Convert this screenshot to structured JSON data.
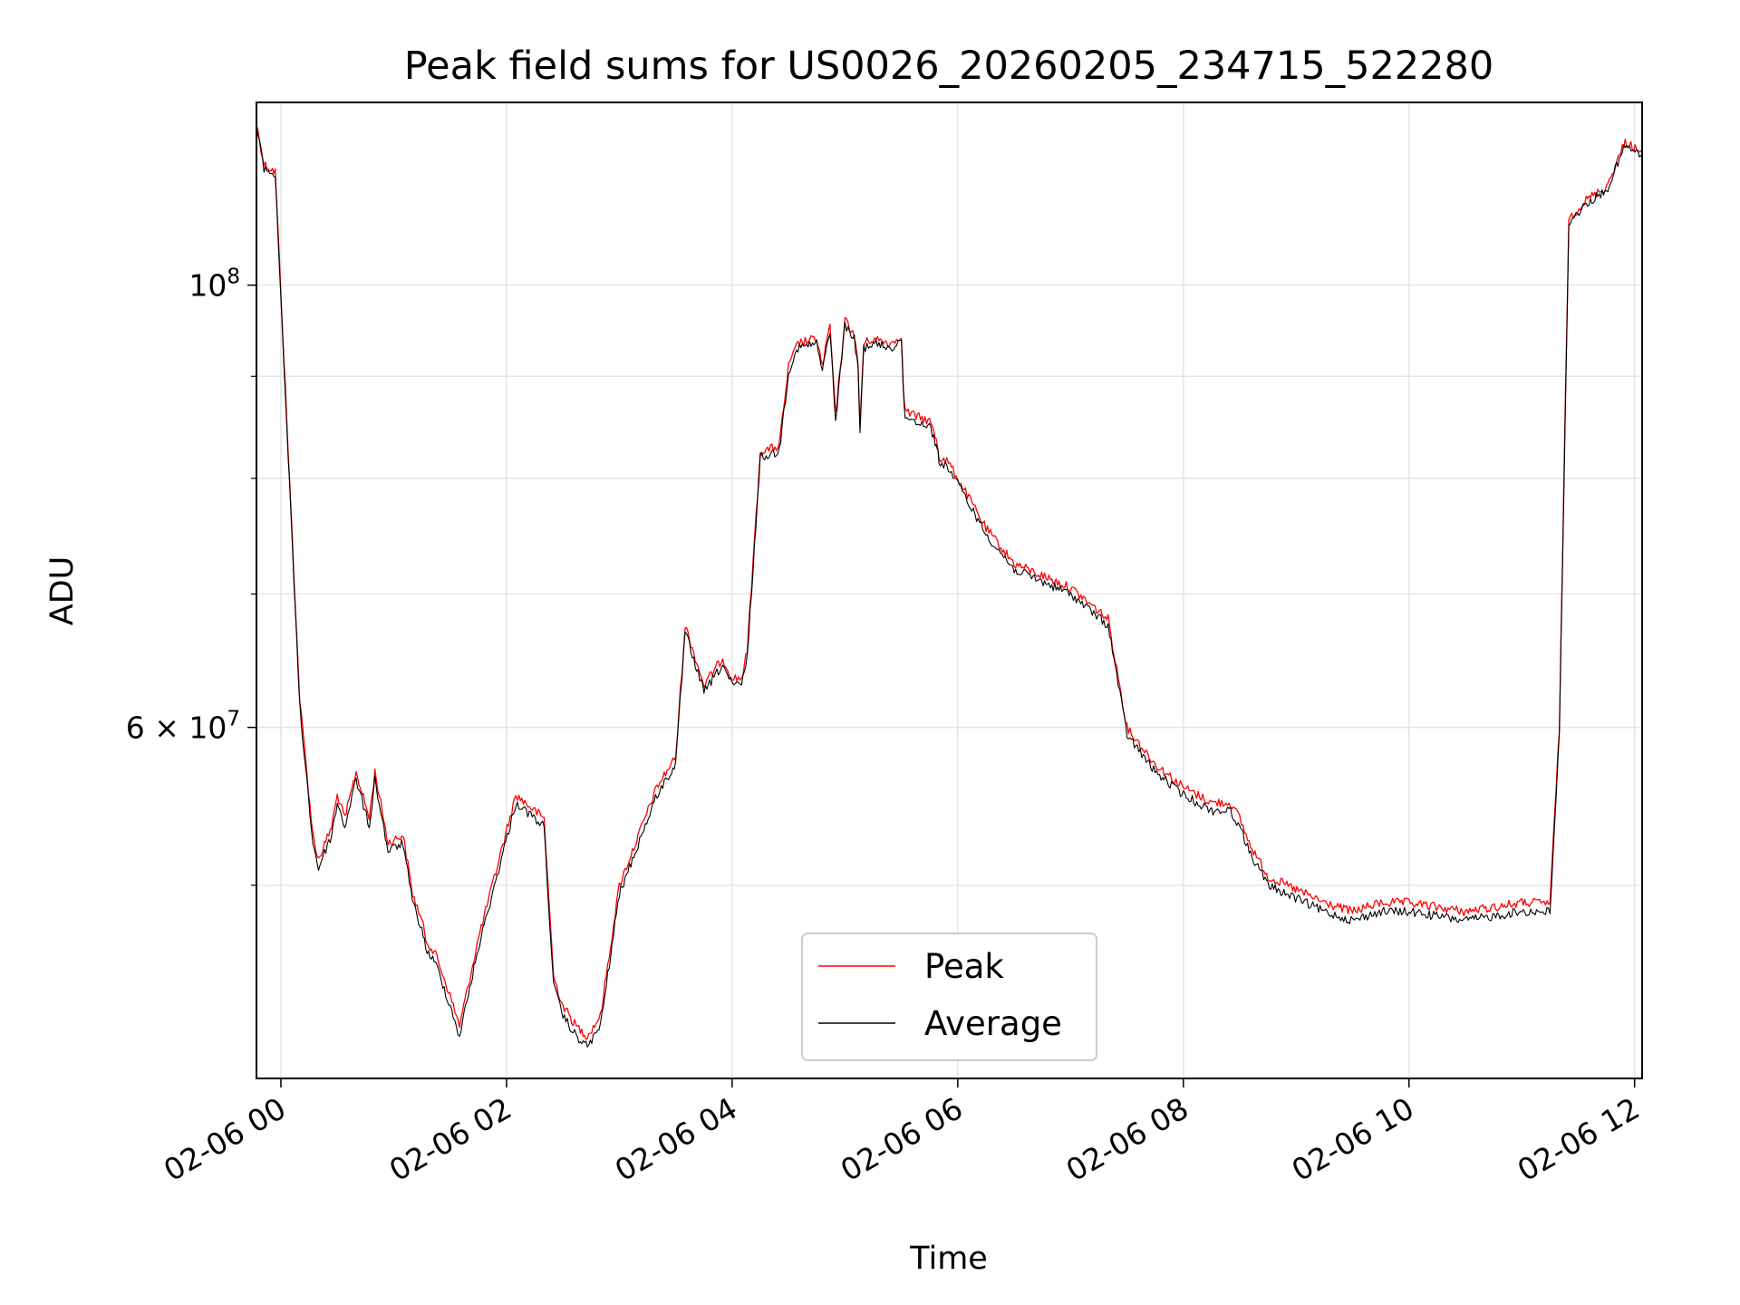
{
  "chart_data": {
    "type": "line",
    "title": "Peak field sums for US0026_20260205_234715_522280",
    "xlabel": "Time",
    "ylabel": "ADU",
    "yscale": "log",
    "xlim": [
      "2026-02-05 23:47",
      "2026-02-06 12:04"
    ],
    "ylim": [
      40000000,
      123500000
    ],
    "grid": true,
    "legend_position": "lower-center",
    "x_ticks": [
      "02-06 00",
      "02-06 02",
      "02-06 04",
      "02-06 06",
      "02-06 08",
      "02-06 10",
      "02-06 12"
    ],
    "y_ticks_major": [
      {
        "value": 100000000,
        "label_base": "10",
        "label_exp": "8"
      },
      {
        "value": 60000000,
        "label_base": "6 × 10",
        "label_exp": "7"
      }
    ],
    "y_ticks_minor": [
      50000000,
      70000000,
      80000000,
      90000000
    ],
    "x": [
      "2026-02-05 23:47",
      "2026-02-05 23:51",
      "2026-02-05 23:57",
      "2026-02-06 00:10",
      "2026-02-06 00:17",
      "2026-02-06 00:20",
      "2026-02-06 00:27",
      "2026-02-06 00:30",
      "2026-02-06 00:34",
      "2026-02-06 00:40",
      "2026-02-06 00:47",
      "2026-02-06 00:50",
      "2026-02-06 00:57",
      "2026-02-06 01:05",
      "2026-02-06 01:10",
      "2026-02-06 01:15",
      "2026-02-06 01:17",
      "2026-02-06 01:23",
      "2026-02-06 01:30",
      "2026-02-06 01:35",
      "2026-02-06 01:45",
      "2026-02-06 02:05",
      "2026-02-06 02:20",
      "2026-02-06 02:25",
      "2026-02-06 02:30",
      "2026-02-06 02:37",
      "2026-02-06 02:43",
      "2026-02-06 02:50",
      "2026-02-06 03:00",
      "2026-02-06 03:20",
      "2026-02-06 03:30",
      "2026-02-06 03:35",
      "2026-02-06 03:45",
      "2026-02-06 03:55",
      "2026-02-06 04:00",
      "2026-02-06 04:05",
      "2026-02-06 04:08",
      "2026-02-06 04:15",
      "2026-02-06 04:25",
      "2026-02-06 04:30",
      "2026-02-06 04:35",
      "2026-02-06 04:45",
      "2026-02-06 04:48",
      "2026-02-06 04:52",
      "2026-02-06 04:55",
      "2026-02-06 05:00",
      "2026-02-06 05:05",
      "2026-02-06 05:07",
      "2026-02-06 05:08",
      "2026-02-06 05:10",
      "2026-02-06 05:15",
      "2026-02-06 05:25",
      "2026-02-06 05:30",
      "2026-02-06 05:31",
      "2026-02-06 05:32",
      "2026-02-06 05:37",
      "2026-02-06 05:45",
      "2026-02-06 05:48",
      "2026-02-06 05:49",
      "2026-02-06 05:50",
      "2026-02-06 05:55",
      "2026-02-06 06:00",
      "2026-02-06 06:05",
      "2026-02-06 06:10",
      "2026-02-06 06:15",
      "2026-02-06 06:30",
      "2026-02-06 07:00",
      "2026-02-06 07:20",
      "2026-02-06 07:30",
      "2026-02-06 07:45",
      "2026-02-06 08:00",
      "2026-02-06 08:15",
      "2026-02-06 08:25",
      "2026-02-06 08:30",
      "2026-02-06 08:35",
      "2026-02-06 08:45",
      "2026-02-06 09:15",
      "2026-02-06 09:30",
      "2026-02-06 09:45",
      "2026-02-06 10:00",
      "2026-02-06 10:30",
      "2026-02-06 11:00",
      "2026-02-06 11:15",
      "2026-02-06 11:20",
      "2026-02-06 11:25",
      "2026-02-06 11:35",
      "2026-02-06 11:45",
      "2026-02-06 11:55",
      "2026-02-06 11:58",
      "2026-02-06 12:04"
    ],
    "series": [
      {
        "name": "Peak",
        "color": "#ff0000",
        "values": [
          120500000,
          115000000,
          114000000,
          62000000,
          53000000,
          51500000,
          53500000,
          55500000,
          54000000,
          57000000,
          54000000,
          57000000,
          52500000,
          53000000,
          49500000,
          48000000,
          47000000,
          46000000,
          44000000,
          42500000,
          47000000,
          55500000,
          54000000,
          45000000,
          43500000,
          42500000,
          42000000,
          43000000,
          50000000,
          56000000,
          58000000,
          67500000,
          63000000,
          65000000,
          63500000,
          63500000,
          65500000,
          82500000,
          83000000,
          91000000,
          93500000,
          94000000,
          91000000,
          95500000,
          86000000,
          96000000,
          94500000,
          91000000,
          85000000,
          93500000,
          94000000,
          93500000,
          94500000,
          89000000,
          86500000,
          86000000,
          85500000,
          84000000,
          83500000,
          82000000,
          81500000,
          80000000,
          78500000,
          77000000,
          75500000,
          72500000,
          70500000,
          68000000,
          60000000,
          57500000,
          56000000,
          55000000,
          55000000,
          54000000,
          52500000,
          50500000,
          49000000,
          48500000,
          49000000,
          49000000,
          48500000,
          49000000,
          49000000,
          60000000,
          108000000,
          110500000,
          112000000,
          118000000,
          117500000,
          116500000
        ]
      },
      {
        "name": "Average",
        "color": "#000000",
        "values": [
          120000000,
          114500000,
          113500000,
          61500000,
          52500000,
          51000000,
          53000000,
          55000000,
          53500000,
          56500000,
          53500000,
          56500000,
          52000000,
          52500000,
          49000000,
          47500000,
          46500000,
          45500000,
          43500000,
          42000000,
          46500000,
          55000000,
          53500000,
          44500000,
          43000000,
          42000000,
          41500000,
          42500000,
          49500000,
          55500000,
          57500000,
          67000000,
          62500000,
          64500000,
          63000000,
          63000000,
          65000000,
          82000000,
          82500000,
          90500000,
          93000000,
          93500000,
          90500000,
          95000000,
          85500000,
          95500000,
          94000000,
          90500000,
          84500000,
          93000000,
          93500000,
          93000000,
          94000000,
          88500000,
          86000000,
          85500000,
          85000000,
          83500000,
          83000000,
          81500000,
          81000000,
          79500000,
          78000000,
          76500000,
          75000000,
          72000000,
          70000000,
          67500000,
          59500000,
          57000000,
          55500000,
          54500000,
          54500000,
          53500000,
          52000000,
          50000000,
          48500000,
          48000000,
          48500000,
          48500000,
          48000000,
          48500000,
          48500000,
          59500000,
          107500000,
          110000000,
          111500000,
          117500000,
          117000000,
          116000000
        ]
      }
    ]
  }
}
